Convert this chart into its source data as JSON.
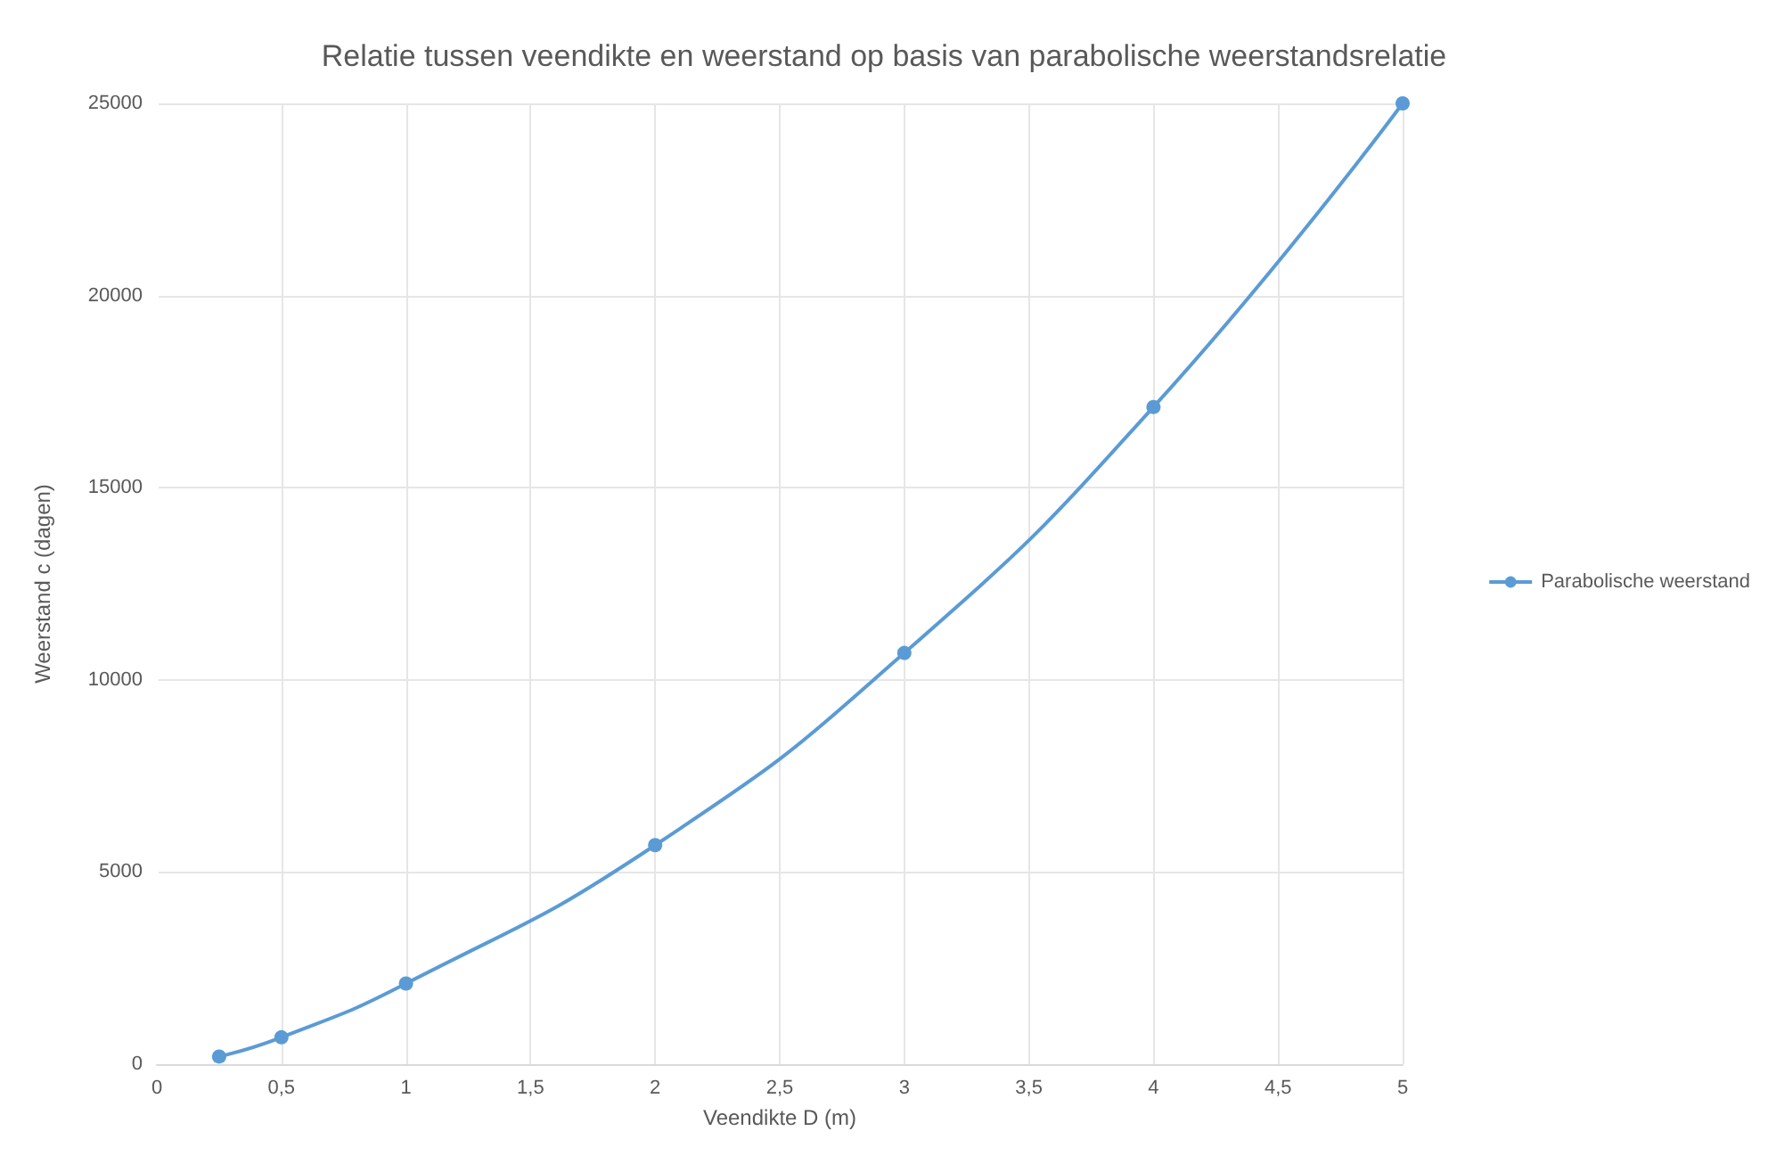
{
  "chart_data": {
    "type": "line",
    "title": "Relatie tussen veendikte en weerstand op basis van parabolische weerstandsrelatie",
    "xlabel": "Veendikte D (m)",
    "ylabel": "Weerstand c (dagen)",
    "x": [
      0.25,
      0.5,
      1,
      2,
      3,
      4,
      5
    ],
    "series": [
      {
        "name": "Parabolische weerstand",
        "color": "#5b9bd5",
        "values": [
          200,
          700,
          2100,
          5700,
          10700,
          17100,
          25000
        ]
      }
    ],
    "xlim": [
      0,
      5
    ],
    "xticks": [
      0,
      {
        "value": 0.5,
        "label": "0,5"
      },
      1,
      {
        "value": 1.5,
        "label": "1,5"
      },
      2,
      {
        "value": 2.5,
        "label": "2,5"
      },
      3,
      {
        "value": 3.5,
        "label": "3,5"
      },
      4,
      {
        "value": 4.5,
        "label": "4,5"
      },
      5
    ],
    "ylim": [
      0,
      25000
    ],
    "yticks": [
      0,
      5000,
      10000,
      15000,
      20000,
      25000
    ],
    "grid": true,
    "legend": "right",
    "marker": "circle",
    "line_style": "solid"
  }
}
